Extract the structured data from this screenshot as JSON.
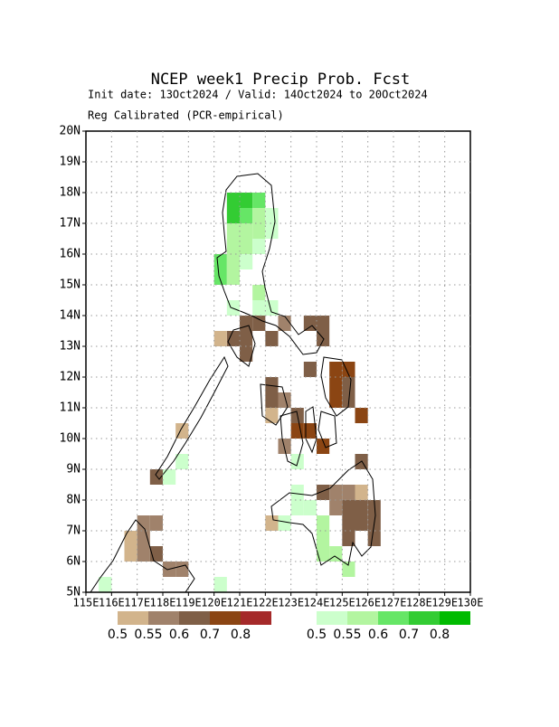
{
  "chart_data": {
    "type": "gridmap",
    "title": "NCEP week1 Precip Prob. Fcst",
    "subtitle": "Init date: 13Oct2024 / Valid: 14Oct2024 to 20Oct2024",
    "subtitle2": "Reg Calibrated (PCR-empirical)",
    "xlim": [
      115,
      130
    ],
    "ylim": [
      5,
      20
    ],
    "cell_size": 0.5,
    "grid": true,
    "xticks": [
      {
        "value": 115,
        "label": "115E"
      },
      {
        "value": 116,
        "label": "116E"
      },
      {
        "value": 117,
        "label": "117E"
      },
      {
        "value": 118,
        "label": "118E"
      },
      {
        "value": 119,
        "label": "119E"
      },
      {
        "value": 120,
        "label": "120E"
      },
      {
        "value": 121,
        "label": "121E"
      },
      {
        "value": 122,
        "label": "122E"
      },
      {
        "value": 123,
        "label": "123E"
      },
      {
        "value": 124,
        "label": "124E"
      },
      {
        "value": 125,
        "label": "125E"
      },
      {
        "value": 126,
        "label": "126E"
      },
      {
        "value": 127,
        "label": "127E"
      },
      {
        "value": 128,
        "label": "128E"
      },
      {
        "value": 129,
        "label": "129E"
      },
      {
        "value": 130,
        "label": "130E"
      }
    ],
    "yticks": [
      {
        "value": 5,
        "label": "5N"
      },
      {
        "value": 6,
        "label": "6N"
      },
      {
        "value": 7,
        "label": "7N"
      },
      {
        "value": 8,
        "label": "8N"
      },
      {
        "value": 9,
        "label": "9N"
      },
      {
        "value": 10,
        "label": "10N"
      },
      {
        "value": 11,
        "label": "11N"
      },
      {
        "value": 12,
        "label": "12N"
      },
      {
        "value": 13,
        "label": "13N"
      },
      {
        "value": 14,
        "label": "14N"
      },
      {
        "value": 15,
        "label": "15N"
      },
      {
        "value": 16,
        "label": "16N"
      },
      {
        "value": 17,
        "label": "17N"
      },
      {
        "value": 18,
        "label": "18N"
      },
      {
        "value": 19,
        "label": "19N"
      },
      {
        "value": 20,
        "label": "20N"
      }
    ],
    "dry": {
      "levels": [
        0.5,
        0.55,
        0.6,
        0.7,
        0.8
      ],
      "colors": [
        "#d2b48c",
        "#a0826b",
        "#7f5f47",
        "#8b4513",
        "#a52a2a"
      ],
      "cells": [
        [
          121,
          13.5,
          0.6
        ],
        [
          121.5,
          13.5,
          0.6
        ],
        [
          120.5,
          13,
          0.6
        ],
        [
          121,
          13,
          0.6
        ],
        [
          121,
          12.5,
          0.6
        ],
        [
          120,
          13,
          0.5
        ],
        [
          122.5,
          13.5,
          0.55
        ],
        [
          122,
          13,
          0.6
        ],
        [
          123.5,
          13.5,
          0.6
        ],
        [
          124,
          13.5,
          0.6
        ],
        [
          124,
          13,
          0.6
        ],
        [
          123.5,
          12,
          0.6
        ],
        [
          124.5,
          12,
          0.7
        ],
        [
          125,
          12,
          0.7
        ],
        [
          124.5,
          11.5,
          0.7
        ],
        [
          125,
          11.5,
          0.6
        ],
        [
          124.5,
          11,
          0.7
        ],
        [
          125,
          11,
          0.6
        ],
        [
          125.5,
          10.5,
          0.7
        ],
        [
          122,
          11.5,
          0.6
        ],
        [
          122,
          11,
          0.6
        ],
        [
          122.5,
          11,
          0.55
        ],
        [
          122,
          10.5,
          0.5
        ],
        [
          123,
          10.5,
          0.6
        ],
        [
          123,
          10,
          0.7
        ],
        [
          123.5,
          10,
          0.7
        ],
        [
          124,
          9.5,
          0.7
        ],
        [
          122.5,
          9.5,
          0.55
        ],
        [
          124,
          8,
          0.6
        ],
        [
          124.5,
          8,
          0.55
        ],
        [
          125,
          8,
          0.55
        ],
        [
          125.5,
          8,
          0.5
        ],
        [
          124.5,
          7.5,
          0.55
        ],
        [
          125,
          7.5,
          0.6
        ],
        [
          125.5,
          7.5,
          0.6
        ],
        [
          126,
          7.5,
          0.6
        ],
        [
          125,
          7,
          0.6
        ],
        [
          125.5,
          7,
          0.6
        ],
        [
          126,
          7,
          0.6
        ],
        [
          125,
          6.5,
          0.6
        ],
        [
          126,
          6.5,
          0.6
        ],
        [
          125.5,
          9,
          0.6
        ],
        [
          116.5,
          6.5,
          0.5
        ],
        [
          116.5,
          6,
          0.5
        ],
        [
          117,
          6.5,
          0.55
        ],
        [
          117,
          7,
          0.55
        ],
        [
          117.5,
          7,
          0.55
        ],
        [
          117,
          6,
          0.55
        ],
        [
          117.5,
          6,
          0.6
        ],
        [
          118,
          5.5,
          0.55
        ],
        [
          118.5,
          5.5,
          0.55
        ],
        [
          117.5,
          8.5,
          0.6
        ],
        [
          118.5,
          10,
          0.5
        ],
        [
          122,
          7,
          0.5
        ]
      ]
    },
    "wet": {
      "levels": [
        0.5,
        0.55,
        0.6,
        0.7,
        0.8
      ],
      "colors": [
        "#ccffcc",
        "#b3f5a0",
        "#66e666",
        "#33cc33",
        "#00bb00"
      ],
      "cells": [
        [
          120.5,
          17.5,
          0.7
        ],
        [
          121,
          17.5,
          0.7
        ],
        [
          120.5,
          17,
          0.7
        ],
        [
          121.5,
          17.5,
          0.6
        ],
        [
          121,
          17,
          0.6
        ],
        [
          121.5,
          17,
          0.55
        ],
        [
          122,
          17,
          0.5
        ],
        [
          120.5,
          16.5,
          0.55
        ],
        [
          121,
          16.5,
          0.55
        ],
        [
          121.5,
          16.5,
          0.55
        ],
        [
          122,
          16.5,
          0.5
        ],
        [
          120.5,
          16,
          0.55
        ],
        [
          121,
          16,
          0.55
        ],
        [
          121.5,
          16,
          0.5
        ],
        [
          120,
          15.5,
          0.6
        ],
        [
          120.5,
          15.5,
          0.55
        ],
        [
          121,
          15.5,
          0.5
        ],
        [
          120,
          15,
          0.6
        ],
        [
          120.5,
          15,
          0.55
        ],
        [
          121.5,
          14.5,
          0.55
        ],
        [
          121.5,
          14,
          0.5
        ],
        [
          120.5,
          14,
          0.5
        ],
        [
          122,
          14,
          0.5
        ],
        [
          124,
          7,
          0.55
        ],
        [
          124,
          6.5,
          0.55
        ],
        [
          124,
          6,
          0.55
        ],
        [
          124.5,
          6,
          0.55
        ],
        [
          123.5,
          7.5,
          0.5
        ],
        [
          123,
          7.5,
          0.5
        ],
        [
          123,
          8,
          0.5
        ],
        [
          122.5,
          7,
          0.5
        ],
        [
          125,
          5.5,
          0.55
        ],
        [
          123,
          9,
          0.5
        ],
        [
          118.5,
          9,
          0.5
        ],
        [
          118,
          8.5,
          0.5
        ],
        [
          115.5,
          5,
          0.5
        ],
        [
          120,
          5,
          0.5
        ]
      ]
    },
    "colorbar_labels": [
      "0.5",
      "0.55",
      "0.6",
      "0.7",
      "0.8"
    ]
  }
}
